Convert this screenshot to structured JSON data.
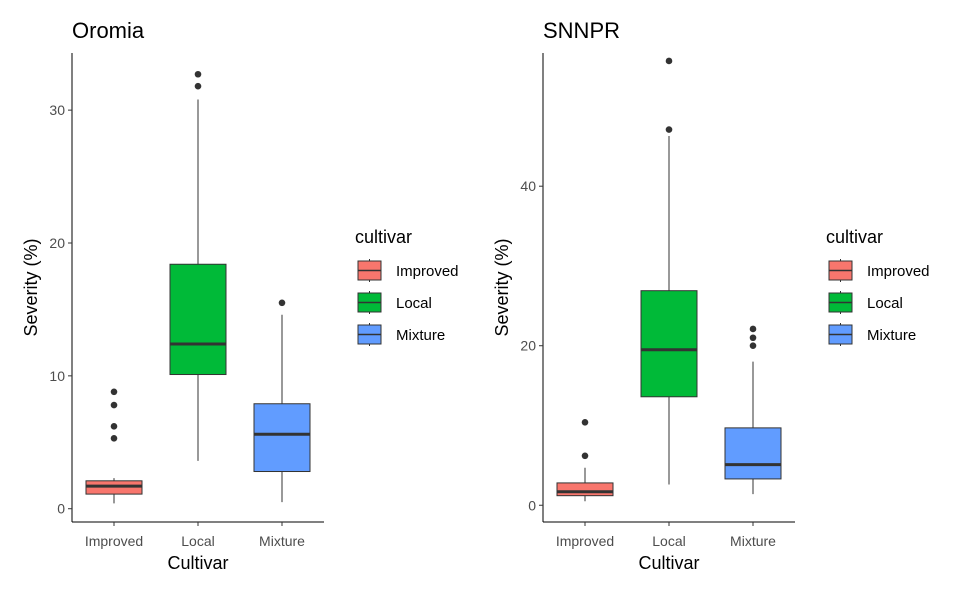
{
  "chart_data": [
    {
      "type": "boxplot",
      "title": "Oromia",
      "xlabel": "Cultivar",
      "ylabel": "Severity (%)",
      "ylim": [
        -1,
        34.3
      ],
      "yticks": [
        0,
        10,
        20,
        30
      ],
      "categories": [
        "Improved",
        "Local",
        "Mixture"
      ],
      "legend": {
        "title": "cultivar",
        "entries": [
          "Improved",
          "Local",
          "Mixture"
        ],
        "position": "right"
      },
      "colors": {
        "Improved": "#F8766D",
        "Local": "#00BA38",
        "Mixture": "#619CFF"
      },
      "boxes": [
        {
          "category": "Improved",
          "whisker_low": 0.4,
          "q1": 1.1,
          "median": 1.7,
          "q3": 2.1,
          "whisker_high": 2.3,
          "outliers": [
            5.3,
            6.2,
            7.8,
            8.8
          ]
        },
        {
          "category": "Local",
          "whisker_low": 3.6,
          "q1": 10.1,
          "median": 12.4,
          "q3": 18.4,
          "whisker_high": 30.8,
          "outliers": [
            31.8,
            32.7
          ]
        },
        {
          "category": "Mixture",
          "whisker_low": 0.5,
          "q1": 2.8,
          "median": 5.6,
          "q3": 7.9,
          "whisker_high": 14.6,
          "outliers": [
            15.5
          ]
        }
      ],
      "grid": false
    },
    {
      "type": "boxplot",
      "title": "SNNPR",
      "xlabel": "Cultivar",
      "ylabel": "Severity (%)",
      "ylim": [
        -2.1,
        56.7
      ],
      "yticks": [
        0,
        20,
        40
      ],
      "categories": [
        "Improved",
        "Local",
        "Mixture"
      ],
      "legend": {
        "title": "cultivar",
        "entries": [
          "Improved",
          "Local",
          "Mixture"
        ],
        "position": "right"
      },
      "colors": {
        "Improved": "#F8766D",
        "Local": "#00BA38",
        "Mixture": "#619CFF"
      },
      "boxes": [
        {
          "category": "Improved",
          "whisker_low": 0.5,
          "q1": 1.2,
          "median": 1.7,
          "q3": 2.8,
          "whisker_high": 4.7,
          "outliers": [
            6.2,
            10.4
          ]
        },
        {
          "category": "Local",
          "whisker_low": 2.6,
          "q1": 13.6,
          "median": 19.5,
          "q3": 26.9,
          "whisker_high": 46.3,
          "outliers": [
            47.1,
            55.7
          ]
        },
        {
          "category": "Mixture",
          "whisker_low": 1.4,
          "q1": 3.3,
          "median": 5.1,
          "q3": 9.7,
          "whisker_high": 18.0,
          "outliers": [
            20.0,
            21.0,
            22.1
          ]
        }
      ],
      "grid": false
    }
  ]
}
